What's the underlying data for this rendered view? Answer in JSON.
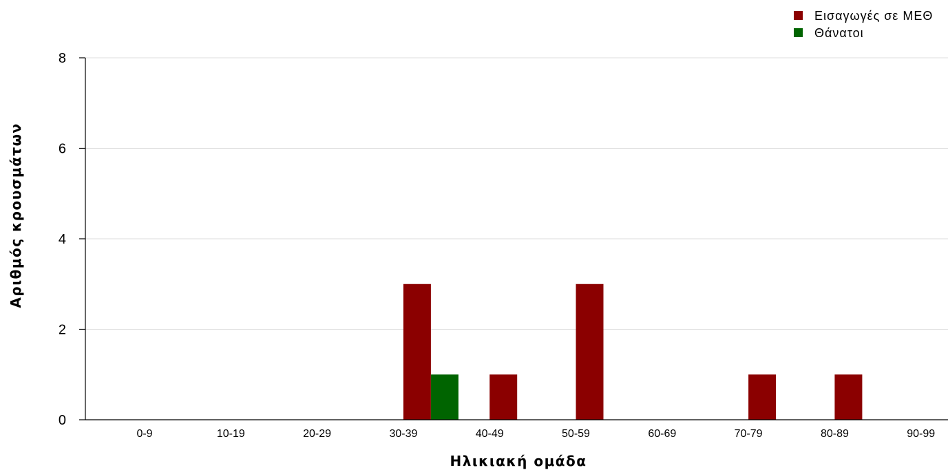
{
  "chart_data": {
    "type": "bar",
    "title": "",
    "xlabel": "Ηλικιακή ομάδα",
    "ylabel": "Αριθμός κρουσμάτων",
    "categories": [
      "0-9",
      "10-19",
      "20-29",
      "30-39",
      "40-49",
      "50-59",
      "60-69",
      "70-79",
      "80-89",
      "90-99"
    ],
    "series": [
      {
        "name": "Εισαγωγές σε ΜΕΘ",
        "color": "#8b0000",
        "values": [
          0,
          0,
          0,
          3,
          1,
          3,
          0,
          1,
          1,
          0
        ]
      },
      {
        "name": "Θάνατοι",
        "color": "#006400",
        "values": [
          0,
          0,
          0,
          1,
          0,
          0,
          0,
          0,
          0,
          0
        ]
      }
    ],
    "ylim": [
      0,
      8
    ],
    "yticks": [
      0,
      2,
      4,
      6,
      8
    ],
    "grid": true,
    "legend_position": "top-right"
  }
}
